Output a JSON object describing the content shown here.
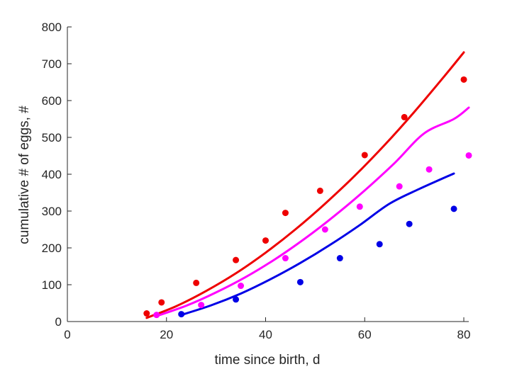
{
  "chart_data": {
    "type": "scatter",
    "xlabel": "time since birth, d",
    "ylabel": "cumulative # of eggs, #",
    "xlim": [
      0,
      81
    ],
    "ylim": [
      0,
      800
    ],
    "xticks": [
      0,
      20,
      40,
      60,
      80
    ],
    "yticks": [
      0,
      100,
      200,
      300,
      400,
      500,
      600,
      700,
      800
    ],
    "grid": false,
    "box": false,
    "series": [
      {
        "color": "#ee0000",
        "points": {
          "x": [
            16,
            19,
            26,
            34,
            40,
            44,
            51,
            60,
            68,
            80
          ],
          "y": [
            22,
            52,
            105,
            167,
            220,
            295,
            355,
            452,
            555,
            657
          ]
        },
        "fit": {
          "x": [
            16,
            22,
            28,
            34,
            40,
            46,
            52,
            58,
            64,
            70,
            76,
            80
          ],
          "y": [
            10,
            42,
            83,
            131,
            187,
            250,
            320,
            396,
            479,
            569,
            665,
            731
          ]
        }
      },
      {
        "color": "#ff00ff",
        "points": {
          "x": [
            18,
            27,
            35,
            44,
            52,
            59,
            67,
            73,
            81
          ],
          "y": [
            18,
            45,
            97,
            172,
            250,
            312,
            367,
            413,
            451
          ]
        },
        "fit": {
          "x": [
            18,
            24,
            30,
            36,
            42,
            48,
            54,
            60,
            66,
            72,
            78,
            81
          ],
          "y": [
            15,
            43,
            79,
            121,
            170,
            226,
            288,
            356,
            430,
            511,
            550,
            581
          ]
        }
      },
      {
        "color": "#0000e6",
        "points": {
          "x": [
            23,
            34,
            47,
            55,
            63,
            69,
            78
          ],
          "y": [
            20,
            60,
            107,
            172,
            210,
            265,
            306
          ]
        },
        "fit": {
          "x": [
            23,
            29,
            35,
            41,
            47,
            53,
            59,
            65,
            71,
            78
          ],
          "y": [
            18,
            44,
            76,
            115,
            159,
            208,
            262,
            320,
            360,
            402
          ]
        }
      }
    ]
  }
}
